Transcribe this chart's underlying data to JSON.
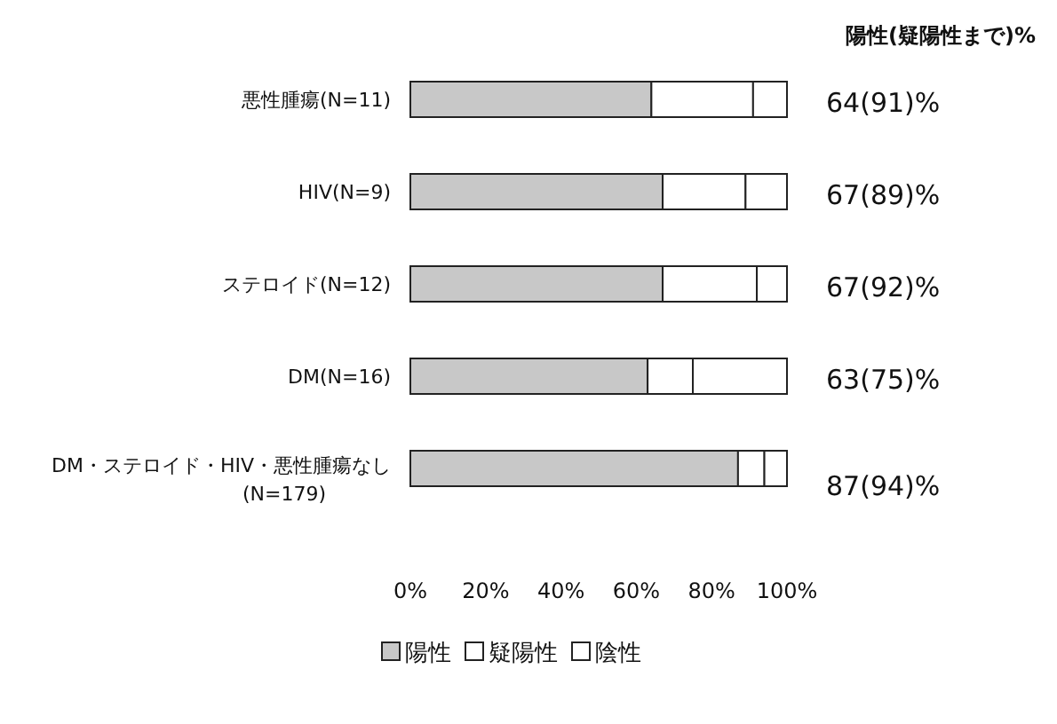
{
  "chart_data": {
    "type": "bar",
    "orientation": "horizontal",
    "stacked": true,
    "subtitle": "陽性(疑陽性まで)%",
    "categories": [
      "悪性腫瘍(N=11)",
      "HIV(N=9)",
      "ステロイド(N=12)",
      "DM(N=16)",
      "DM・ステロイド・HIV・悪性腫瘍なし(N=179)"
    ],
    "series": [
      {
        "name": "陽性",
        "color": "#c8c8c8",
        "values": [
          64,
          67,
          67,
          63,
          87
        ],
        "value_labels": [
          "64(91)%",
          "67(89)%",
          "67(92)%",
          "63(75)%",
          "87(94)%"
        ]
      },
      {
        "name": "疑陽性",
        "color": "#ffffff",
        "values": [
          27,
          22,
          25,
          12,
          7
        ]
      },
      {
        "name": "陰性",
        "color": "#ffffff",
        "values": [
          9,
          11,
          8,
          25,
          6
        ]
      }
    ],
    "xlim": [
      0,
      100
    ],
    "xticks": [
      {
        "value": 0,
        "label": "0%"
      },
      {
        "value": 20,
        "label": "20%"
      },
      {
        "value": 40,
        "label": "40%"
      },
      {
        "value": 60,
        "label": "60%"
      },
      {
        "value": 80,
        "label": "80%"
      },
      {
        "value": 100,
        "label": "100%"
      }
    ],
    "grid": false,
    "legend": "bottom"
  }
}
